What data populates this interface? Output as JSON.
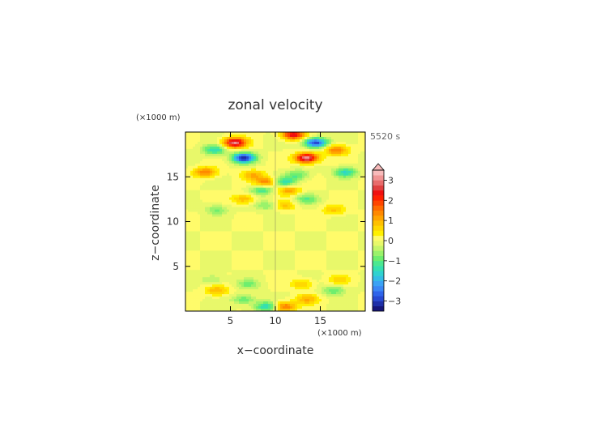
{
  "chart_data": {
    "type": "heatmap",
    "title": "zonal velocity",
    "time_label": "5520 s",
    "xlabel": "x−coordinate",
    "ylabel": "z−coordinate",
    "x_unit": "(×1000 m)",
    "y_unit": "(×1000 m)",
    "xlim": [
      0,
      20
    ],
    "ylim": [
      0,
      20
    ],
    "x_ticks": [
      5,
      10,
      15
    ],
    "y_ticks": [
      5,
      10,
      15
    ],
    "x_tick_labels": [
      "5",
      "10",
      "15"
    ],
    "y_tick_labels": [
      "5",
      "10",
      "15"
    ],
    "grid": false,
    "colorbar": {
      "levels": [
        -3.5,
        -3.25,
        -3,
        -2.75,
        -2.5,
        -2.25,
        -2,
        -1.75,
        -1.5,
        -1.25,
        -1,
        -0.75,
        -0.5,
        -0.25,
        0,
        0.25,
        0.5,
        0.75,
        1,
        1.25,
        1.5,
        1.75,
        2,
        2.25,
        2.5,
        2.75,
        3,
        3.25,
        3.5
      ],
      "tick_values": [
        -3,
        -2,
        -1,
        0,
        1,
        2,
        3
      ],
      "tick_labels": [
        "−3",
        "−2",
        "−1",
        "0",
        "1",
        "2",
        "3"
      ],
      "colors": [
        "#16167a",
        "#1e2fa8",
        "#2849d2",
        "#2f64ea",
        "#3a86f5",
        "#3aa2f5",
        "#34bce6",
        "#2fd2d0",
        "#35e0b0",
        "#4be890",
        "#6eee6e",
        "#9af26a",
        "#c4f56a",
        "#e8f86a",
        "#fffb6a",
        "#fff000",
        "#ffd800",
        "#ffc000",
        "#ffa400",
        "#ff8800",
        "#ff6a00",
        "#ff4500",
        "#ff2000",
        "#f01010",
        "#e04040",
        "#e86c6c",
        "#f09494",
        "#f8baba"
      ],
      "extend": "max"
    },
    "field_features": [
      {
        "x": 5.5,
        "z": 18.8,
        "u": 3.0
      },
      {
        "x": 14.5,
        "z": 18.8,
        "u": -3.0
      },
      {
        "x": 3.2,
        "z": 18.0,
        "u": -1.5
      },
      {
        "x": 16.8,
        "z": 18.0,
        "u": 1.5
      },
      {
        "x": 6.5,
        "z": 17.1,
        "u": -3.2
      },
      {
        "x": 13.5,
        "z": 17.1,
        "u": 3.2
      },
      {
        "x": 12.0,
        "z": 19.7,
        "u": 2.5
      },
      {
        "x": 2.2,
        "z": 15.5,
        "u": 1.5
      },
      {
        "x": 17.8,
        "z": 15.5,
        "u": -1.5
      },
      {
        "x": 7.5,
        "z": 15.2,
        "u": 1.0
      },
      {
        "x": 12.5,
        "z": 15.2,
        "u": -1.0
      },
      {
        "x": 9.0,
        "z": 14.4,
        "u": 1.5
      },
      {
        "x": 11.0,
        "z": 14.4,
        "u": -1.5
      },
      {
        "x": 8.5,
        "z": 13.5,
        "u": -1.2
      },
      {
        "x": 11.5,
        "z": 13.5,
        "u": 1.2
      },
      {
        "x": 6.5,
        "z": 12.5,
        "u": 1.0
      },
      {
        "x": 13.5,
        "z": 12.5,
        "u": -1.0
      },
      {
        "x": 9.0,
        "z": 11.8,
        "u": -0.8
      },
      {
        "x": 11.0,
        "z": 11.8,
        "u": 0.8
      },
      {
        "x": 3.5,
        "z": 11.3,
        "u": -0.8
      },
      {
        "x": 16.5,
        "z": 11.3,
        "u": 0.8
      },
      {
        "x": 3.0,
        "z": 3.5,
        "u": -0.6
      },
      {
        "x": 17.0,
        "z": 3.5,
        "u": 0.6
      },
      {
        "x": 7.0,
        "z": 3.0,
        "u": -0.8
      },
      {
        "x": 13.0,
        "z": 3.0,
        "u": 0.8
      },
      {
        "x": 3.5,
        "z": 2.3,
        "u": 1.0
      },
      {
        "x": 16.5,
        "z": 2.3,
        "u": -1.0
      },
      {
        "x": 6.5,
        "z": 1.3,
        "u": -1.0
      },
      {
        "x": 13.5,
        "z": 1.3,
        "u": 1.0
      },
      {
        "x": 9.0,
        "z": 0.5,
        "u": -1.6
      },
      {
        "x": 11.0,
        "z": 0.5,
        "u": 1.6
      }
    ]
  }
}
